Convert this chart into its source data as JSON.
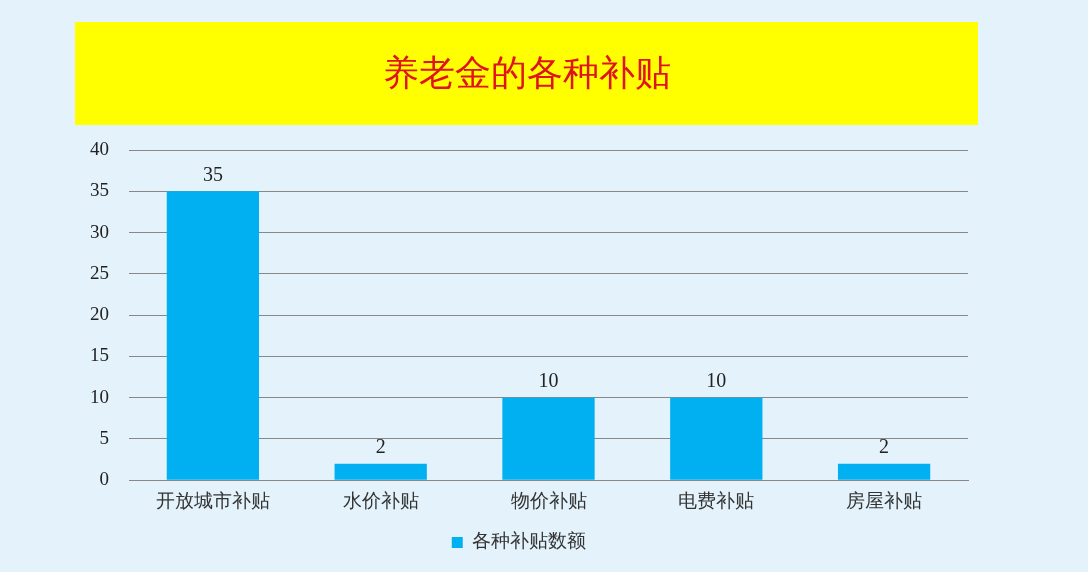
{
  "chart_data": {
    "type": "bar",
    "title": "养老金的各种补贴",
    "categories": [
      "开放城市补贴",
      "水价补贴",
      "物价补贴",
      "电费补贴",
      "房屋补贴"
    ],
    "series": [
      {
        "name": "各种补贴数额",
        "color": "#00b0f0",
        "values": [
          35,
          2,
          10,
          10,
          2
        ]
      }
    ],
    "ylim": [
      0,
      40
    ],
    "yticks": [
      0,
      5,
      10,
      15,
      20,
      25,
      30,
      35,
      40
    ],
    "grid": "y",
    "legend": "bottom",
    "data_labels": true
  }
}
